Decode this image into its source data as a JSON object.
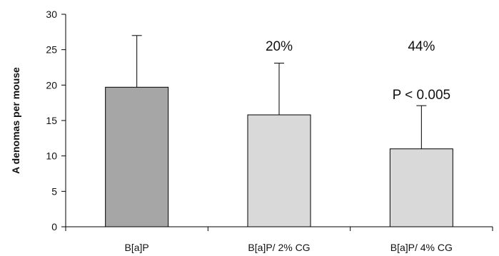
{
  "chart_data": {
    "type": "bar",
    "title": "",
    "xlabel": "",
    "ylabel": "A denomas per mouse",
    "ylim": [
      0,
      30
    ],
    "y_ticks": [
      0,
      5,
      10,
      15,
      20,
      25,
      30
    ],
    "grid": false,
    "categories": [
      "B[a]P",
      "B[a]P/ 2% CG",
      "B[a]P/ 4% CG"
    ],
    "values": [
      19.7,
      15.8,
      11.0
    ],
    "error_upper": [
      27.0,
      23.1,
      17.1
    ],
    "bar_colors": [
      "#a6a6a6",
      "#d9d9d9",
      "#d9d9d9"
    ],
    "annotations": [
      {
        "category": "B[a]P/ 2% CG",
        "text": "20%"
      },
      {
        "category": "B[a]P/ 4% CG",
        "text": "44%"
      },
      {
        "category": "B[a]P/ 4% CG",
        "text": "P < 0.005"
      }
    ]
  }
}
